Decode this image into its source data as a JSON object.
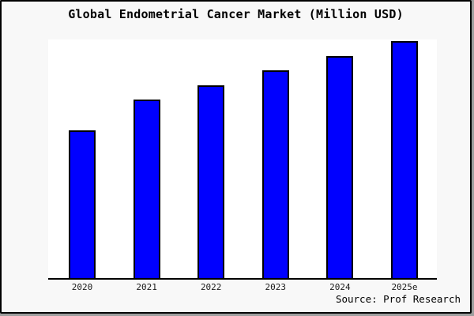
{
  "title": "Global Endometrial Cancer Market (Million USD)",
  "source": "Source: Prof Research",
  "colors": {
    "bar_fill": "#0000ff",
    "bar_border": "#000000",
    "figure_background": "#f8f8f8",
    "plot_background": "#ffffff",
    "axis": "#000000"
  },
  "chart_data": {
    "type": "bar",
    "title": "Global Endometrial Cancer Market (Million USD)",
    "categories": [
      "2020",
      "2021",
      "2022",
      "2023",
      "2024",
      "2025e"
    ],
    "values": [
      62.3,
      75.3,
      81.3,
      87.8,
      93.8,
      100
    ],
    "value_scale_note": "no y-axis ticks shown; values estimated relative to 2025e = 100",
    "xlabel": "",
    "ylabel": "",
    "grid": false,
    "legend": null,
    "source": "Source: Prof Research"
  }
}
